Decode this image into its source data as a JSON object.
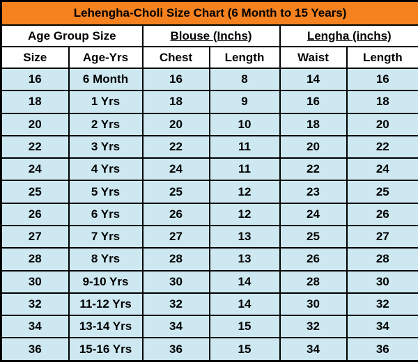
{
  "colors": {
    "header_bg": "#F5821F",
    "row_bg": "#CDE8F1",
    "subheader_bg": "#FFFFFF",
    "border": "#000000",
    "text": "#000000"
  },
  "chart_data": {
    "type": "table",
    "title": "Lehengha-Choli Size Chart  (6 Month to 15 Years)",
    "column_groups": [
      {
        "label": "Age Group Size",
        "span": 2,
        "underline": false
      },
      {
        "label": "Blouse (Inchs)",
        "span": 2,
        "underline": true
      },
      {
        "label": "Lengha (inchs)",
        "span": 2,
        "underline": true
      }
    ],
    "columns": [
      "Size",
      "Age-Yrs",
      "Chest",
      "Length",
      "Waist",
      "Length"
    ],
    "rows": [
      [
        "16",
        "6 Month",
        "16",
        "8",
        "14",
        "16"
      ],
      [
        "18",
        "1 Yrs",
        "18",
        "9",
        "16",
        "18"
      ],
      [
        "20",
        "2 Yrs",
        "20",
        "10",
        "18",
        "20"
      ],
      [
        "22",
        "3 Yrs",
        "22",
        "11",
        "20",
        "22"
      ],
      [
        "24",
        "4 Yrs",
        "24",
        "11",
        "22",
        "24"
      ],
      [
        "25",
        "5 Yrs",
        "25",
        "12",
        "23",
        "25"
      ],
      [
        "26",
        "6 Yrs",
        "26",
        "12",
        "24",
        "26"
      ],
      [
        "27",
        "7 Yrs",
        "27",
        "13",
        "25",
        "27"
      ],
      [
        "28",
        "8 Yrs",
        "28",
        "13",
        "26",
        "28"
      ],
      [
        "30",
        "9-10 Yrs",
        "30",
        "14",
        "28",
        "30"
      ],
      [
        "32",
        "11-12 Yrs",
        "32",
        "14",
        "30",
        "32"
      ],
      [
        "34",
        "13-14 Yrs",
        "34",
        "15",
        "32",
        "34"
      ],
      [
        "36",
        "15-16 Yrs",
        "36",
        "15",
        "34",
        "36"
      ]
    ]
  }
}
